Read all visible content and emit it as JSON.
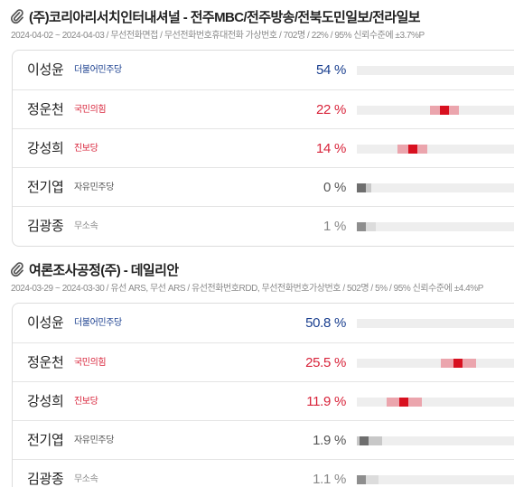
{
  "colors": {
    "dem": "#1a3f8f",
    "ppp": "#d8233a",
    "jinbo": "#d8233a",
    "other": "#555555",
    "indep": "#888888",
    "ppp_range": "#eba5ad",
    "ppp_point": "#d8101f",
    "other_range": "#c8c8c8",
    "other_point": "#6e6e6e",
    "indep_range": "#dcdcdc",
    "indep_point": "#8e8e8e"
  },
  "icons": {
    "title_icon": "paperclip-icon"
  },
  "polls": [
    {
      "title": "(주)코리아리서치인터내셔널 - 전주MBC/전주방송/전북도민일보/전라일보",
      "meta": "2024-04-02 ~ 2024-04-03 / 무선전화면접 / 무선전화번호휴대전화 가상번호 / 702명 / 22% / 95% 신뢰수준에 ±3.7%P",
      "candidates": [
        {
          "name": "이성윤",
          "party": "더불어민주당",
          "percent_label": "54 %",
          "percent": 54,
          "margin": 3.7,
          "tone": "dem"
        },
        {
          "name": "정운천",
          "party": "국민의힘",
          "percent_label": "22 %",
          "percent": 22,
          "margin": 3.7,
          "tone": "ppp"
        },
        {
          "name": "강성희",
          "party": "진보당",
          "percent_label": "14 %",
          "percent": 14,
          "margin": 3.7,
          "tone": "jinbo"
        },
        {
          "name": "전기엽",
          "party": "자유민주당",
          "percent_label": "0 %",
          "percent": 0,
          "margin": 3.7,
          "tone": "other"
        },
        {
          "name": "김광종",
          "party": "무소속",
          "percent_label": "1 %",
          "percent": 1,
          "margin": 3.7,
          "tone": "indep"
        }
      ]
    },
    {
      "title": "여론조사공정(주) - 데일리안",
      "meta": "2024-03-29 ~ 2024-03-30 / 유선 ARS, 무선 ARS / 유선전화번호RDD, 무선전화번호가상번호 / 502명 / 5% / 95% 신뢰수준에 ±4.4%P",
      "candidates": [
        {
          "name": "이성윤",
          "party": "더불어민주당",
          "percent_label": "50.8 %",
          "percent": 50.8,
          "margin": 4.4,
          "tone": "dem"
        },
        {
          "name": "정운천",
          "party": "국민의힘",
          "percent_label": "25.5 %",
          "percent": 25.5,
          "margin": 4.4,
          "tone": "ppp"
        },
        {
          "name": "강성희",
          "party": "진보당",
          "percent_label": "11.9 %",
          "percent": 11.9,
          "margin": 4.4,
          "tone": "jinbo"
        },
        {
          "name": "전기엽",
          "party": "자유민주당",
          "percent_label": "1.9 %",
          "percent": 1.9,
          "margin": 4.4,
          "tone": "other"
        },
        {
          "name": "김광종",
          "party": "무소속",
          "percent_label": "1.1 %",
          "percent": 1.1,
          "margin": 4.4,
          "tone": "indep"
        }
      ]
    }
  ]
}
